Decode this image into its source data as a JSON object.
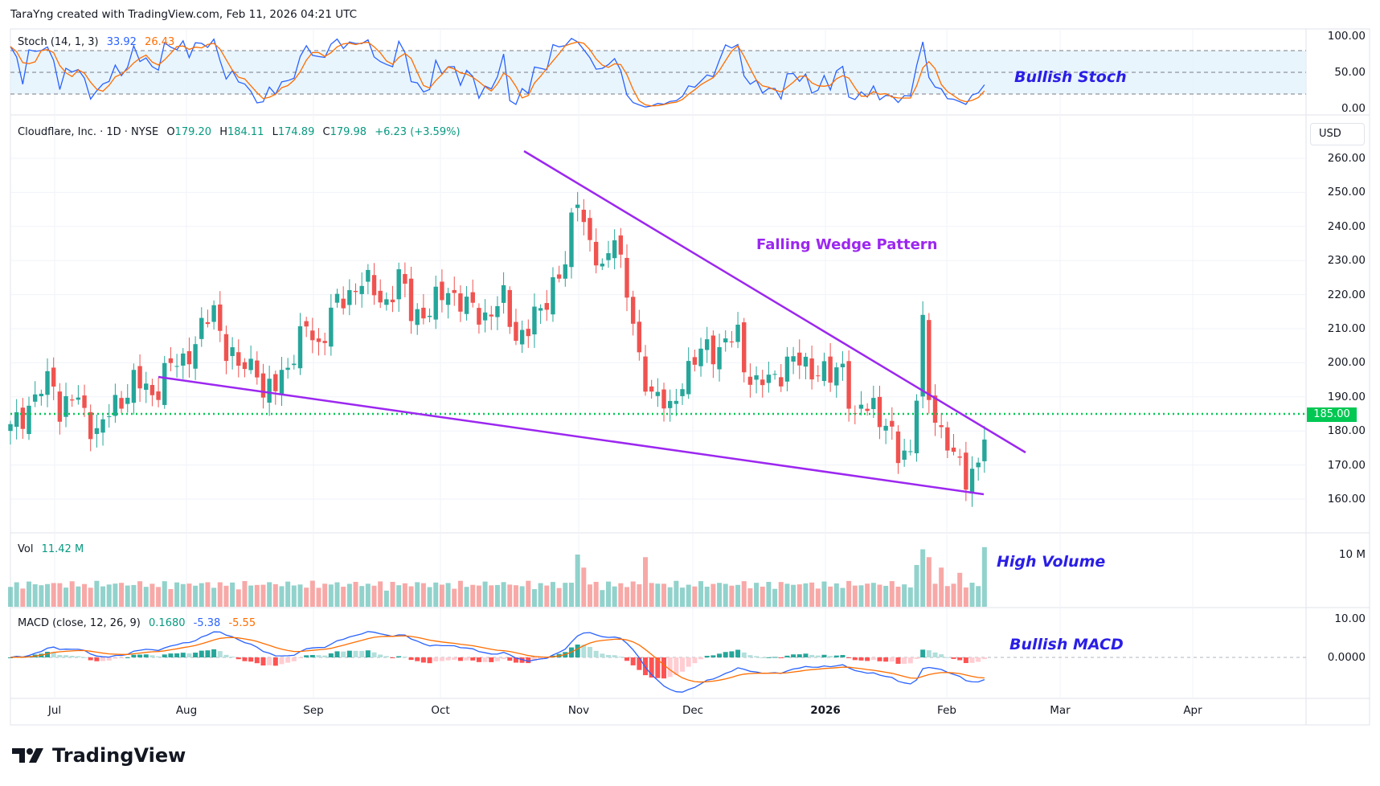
{
  "header": {
    "credit": "TaraYng created with TradingView.com, Feb 11, 2026 04:21 UTC"
  },
  "symbol": {
    "name": "Cloudflare, Inc. · 1D · NYSE",
    "o_label": "O",
    "open": "179.20",
    "h_label": "H",
    "high": "184.11",
    "l_label": "L",
    "low": "174.89",
    "c_label": "C",
    "close": "179.98",
    "change": "+6.23 (+3.59%)"
  },
  "stoch": {
    "label": "Stoch (14, 1, 3)",
    "k": "33.92",
    "d": "26.43",
    "axis": [
      "100.00",
      "50.00",
      "0.00"
    ]
  },
  "volume": {
    "label": "Vol",
    "value": "11.42 M",
    "axis": "10 M"
  },
  "macd": {
    "label": "MACD (close, 12, 26, 9)",
    "hist": "0.1680",
    "macd": "-5.38",
    "signal": "-5.55",
    "axis": [
      "10.00",
      "0.0000"
    ]
  },
  "price_axis": {
    "currency": "USD",
    "ticks": [
      "260.00",
      "250.00",
      "240.00",
      "230.00",
      "220.00",
      "210.00",
      "200.00",
      "190.00",
      "180.00",
      "170.00",
      "160.00"
    ],
    "current": "185.00"
  },
  "time_axis": [
    "Jul",
    "Aug",
    "Sep",
    "Oct",
    "Nov",
    "Dec",
    "2026",
    "Feb",
    "Mar",
    "Apr"
  ],
  "annotations": {
    "wedge": "Falling Wedge Pattern",
    "stoch": "Bullish Stoch",
    "volume": "High Volume",
    "macd": "Bullish MACD"
  },
  "brand": "TradingView",
  "colors": {
    "up": "#26a69a",
    "down": "#ef5350",
    "wedge": "#9c27f0",
    "stoch_k": "#2962ff",
    "stoch_d": "#ff6d00",
    "level": "#00c853"
  },
  "chart_data": {
    "type": "candlestick",
    "title": "Cloudflare, Inc. 1D NYSE",
    "price_keypoints": [
      [
        0,
        180
      ],
      [
        4,
        190
      ],
      [
        7,
        195
      ],
      [
        8,
        186
      ],
      [
        10,
        190
      ],
      [
        14,
        180
      ],
      [
        17,
        187
      ],
      [
        20,
        195
      ],
      [
        23,
        190
      ],
      [
        25,
        198
      ],
      [
        28,
        200
      ],
      [
        30,
        207
      ],
      [
        33,
        215
      ],
      [
        35,
        205
      ],
      [
        37,
        198
      ],
      [
        40,
        200
      ],
      [
        41,
        190
      ],
      [
        43,
        193
      ],
      [
        45,
        200
      ],
      [
        48,
        210
      ],
      [
        50,
        205
      ],
      [
        52,
        215
      ],
      [
        54,
        218
      ],
      [
        57,
        225
      ],
      [
        59,
        220
      ],
      [
        61,
        218
      ],
      [
        63,
        225
      ],
      [
        65,
        215
      ],
      [
        68,
        215
      ],
      [
        71,
        222
      ],
      [
        74,
        216
      ],
      [
        77,
        214
      ],
      [
        80,
        218
      ],
      [
        82,
        208
      ],
      [
        84,
        210
      ],
      [
        86,
        215
      ],
      [
        88,
        224
      ],
      [
        90,
        228
      ],
      [
        91,
        240
      ],
      [
        92,
        250
      ],
      [
        94,
        235
      ],
      [
        96,
        225
      ],
      [
        98,
        240
      ],
      [
        99,
        230
      ],
      [
        101,
        210
      ],
      [
        102,
        200
      ],
      [
        104,
        192
      ],
      [
        105,
        190
      ],
      [
        107,
        185
      ],
      [
        109,
        196
      ],
      [
        111,
        200
      ],
      [
        113,
        205
      ],
      [
        115,
        204
      ],
      [
        118,
        208
      ],
      [
        119,
        200
      ],
      [
        121,
        193
      ],
      [
        124,
        196
      ],
      [
        126,
        200
      ],
      [
        128,
        200
      ],
      [
        131,
        198
      ],
      [
        133,
        195
      ],
      [
        135,
        200
      ],
      [
        137,
        182
      ],
      [
        138,
        186
      ],
      [
        140,
        188
      ],
      [
        142,
        182
      ],
      [
        144,
        172
      ],
      [
        146,
        175
      ],
      [
        148,
        210
      ],
      [
        149,
        188
      ],
      [
        151,
        180
      ],
      [
        152,
        178
      ],
      [
        154,
        168
      ],
      [
        155,
        165
      ],
      [
        157,
        172
      ],
      [
        158,
        180
      ]
    ],
    "volume_spikes_m": [
      [
        92,
        10
      ],
      [
        93,
        7.5
      ],
      [
        103,
        9.5
      ],
      [
        147,
        8
      ],
      [
        148,
        11
      ],
      [
        149,
        9.5
      ],
      [
        151,
        7.5
      ],
      [
        154,
        6.5
      ],
      [
        158,
        11.42
      ]
    ],
    "wedge_upper": [
      [
        "2025-10-23",
        262
      ],
      [
        "2026-02-18",
        174
      ]
    ],
    "wedge_lower": [
      [
        "2025-07-28",
        196
      ],
      [
        "2026-02-10",
        161
      ]
    ],
    "horizontal_level": 185,
    "ylim": [
      155,
      265
    ]
  }
}
